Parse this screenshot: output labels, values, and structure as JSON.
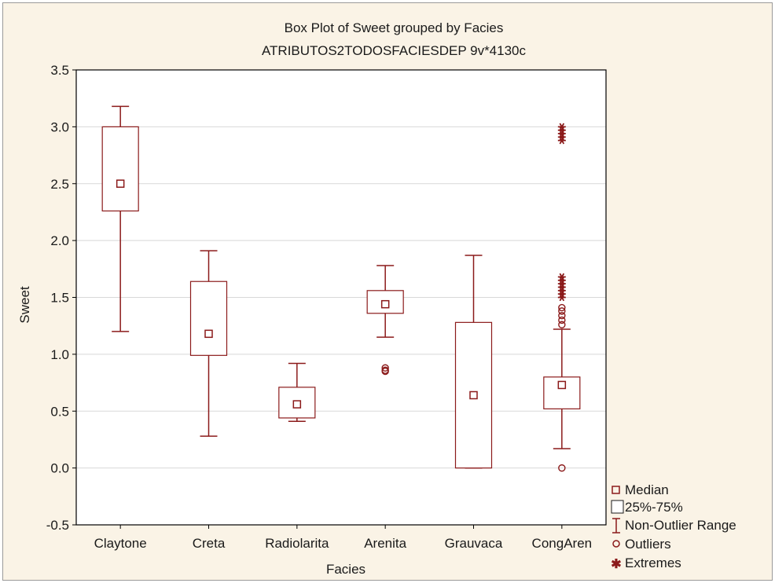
{
  "colors": {
    "mark": "#8b1a1a",
    "plot_bg": "#ffffff",
    "frame_bg": "#faf3e6",
    "grid": "#d8d8d8",
    "axis": "#000000"
  },
  "chart_data": {
    "type": "box",
    "title": "Box Plot of Sweet grouped by  Facies",
    "subtitle": "ATRIBUTOS2TODOSFACIESDEP 9v*4130c",
    "xlabel": "Facies",
    "ylabel": "Sweet",
    "ylim": [
      -0.5,
      3.5
    ],
    "yticks": [
      "3.5",
      "3.0",
      "2.5",
      "2.0",
      "1.5",
      "1.0",
      "0.5",
      "0.0",
      "-0.5"
    ],
    "ytick_values": [
      3.5,
      3.0,
      2.5,
      2.0,
      1.5,
      1.0,
      0.5,
      0.0,
      -0.5
    ],
    "grid": true,
    "legend_position": "bottom-right",
    "categories": [
      "Claytone",
      "Creta",
      "Radiolarita",
      "Arenita",
      "Grauvaca",
      "CongAren"
    ],
    "boxes": [
      {
        "category": "Claytone",
        "median": 2.5,
        "q1": 2.26,
        "q3": 3.0,
        "whisker_low": 1.2,
        "whisker_high": 3.18,
        "outliers": [],
        "extremes": []
      },
      {
        "category": "Creta",
        "median": 1.18,
        "q1": 0.99,
        "q3": 1.64,
        "whisker_low": 0.28,
        "whisker_high": 1.91,
        "outliers": [],
        "extremes": []
      },
      {
        "category": "Radiolarita",
        "median": 0.56,
        "q1": 0.44,
        "q3": 0.71,
        "whisker_low": 0.41,
        "whisker_high": 0.92,
        "outliers": [],
        "extremes": []
      },
      {
        "category": "Arenita",
        "median": 1.44,
        "q1": 1.36,
        "q3": 1.56,
        "whisker_low": 1.15,
        "whisker_high": 1.78,
        "outliers": [
          0.85,
          0.86,
          0.88
        ],
        "extremes": []
      },
      {
        "category": "Grauvaca",
        "median": 0.64,
        "q1": 0.0,
        "q3": 1.28,
        "whisker_low": 0.0,
        "whisker_high": 1.87,
        "outliers": [],
        "extremes": []
      },
      {
        "category": "CongAren",
        "median": 0.73,
        "q1": 0.52,
        "q3": 0.8,
        "whisker_low": 0.17,
        "whisker_high": 1.22,
        "outliers": [
          0.0,
          1.26,
          1.3,
          1.34,
          1.38,
          1.41
        ],
        "extremes": [
          1.5,
          1.53,
          1.56,
          1.59,
          1.62,
          1.65,
          1.68,
          2.88,
          2.91,
          2.94,
          2.97,
          3.0
        ]
      }
    ],
    "legend": {
      "median": "Median",
      "box": "25%-75%",
      "whisker": "Non-Outlier Range",
      "outliers": "Outliers",
      "extremes": "Extremes"
    }
  }
}
